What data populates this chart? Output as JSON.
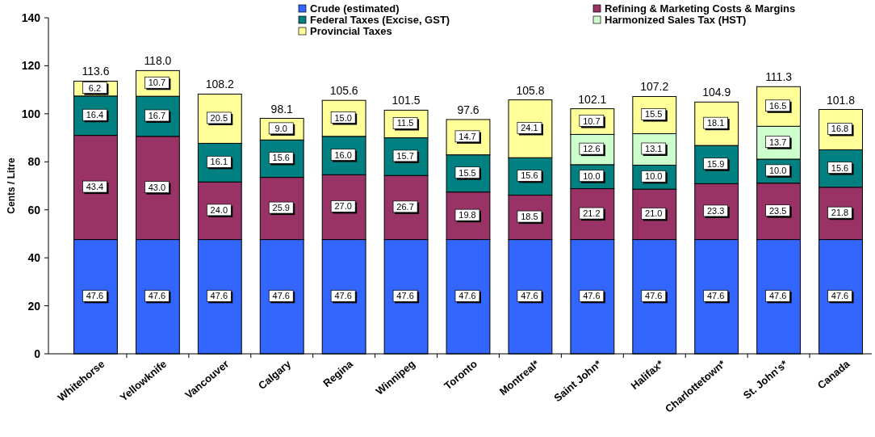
{
  "chart_data": {
    "type": "bar",
    "stacked": true,
    "ylabel": "Cents / Litre",
    "categories": [
      "Whitehorse",
      "Yellowknife",
      "Vancouver",
      "Calgary",
      "Regina",
      "Winnipeg",
      "Toronto",
      "Montreal*",
      "Saint John*",
      "Halifax*",
      "Charlottetown*",
      "St. John's*",
      "Canada"
    ],
    "series": [
      {
        "name": "Crude (estimated)",
        "color": "#3366ff",
        "values": [
          47.6,
          47.6,
          47.6,
          47.6,
          47.6,
          47.6,
          47.6,
          47.6,
          47.6,
          47.6,
          47.6,
          47.6,
          47.6
        ],
        "value_labels": [
          "47.6",
          "47.6",
          "47.6",
          "47.6",
          "47.6",
          "47.6",
          "47.6",
          "47.6",
          "47.6",
          "47.6",
          "47.6",
          "47.6",
          "47.6"
        ]
      },
      {
        "name": "Refining & Marketing Costs & Margins",
        "color": "#993366",
        "values": [
          43.4,
          43.0,
          24.0,
          25.9,
          27.0,
          26.7,
          19.8,
          18.5,
          21.2,
          21.0,
          23.3,
          23.5,
          21.8
        ],
        "value_labels": [
          "43.4",
          "43.0",
          "24.0",
          "25.9",
          "27.0",
          "26.7",
          "19.8",
          "18.5",
          "21.2",
          "21.0",
          "23.3",
          "23.5",
          "21.8"
        ]
      },
      {
        "name": "Federal Taxes (Excise, GST)",
        "color": "#008080",
        "values": [
          16.4,
          16.7,
          16.1,
          15.6,
          16.0,
          15.7,
          15.5,
          15.6,
          10.0,
          10.0,
          15.9,
          10.0,
          15.6
        ],
        "value_labels": [
          "16.4",
          "16.7",
          "16.1",
          "15.6",
          "16.0",
          "15.7",
          "15.5",
          "15.6",
          "10.0",
          "10.0",
          "15.9",
          "10.0",
          "15.6"
        ]
      },
      {
        "name": "Harmonized Sales Tax (HST)",
        "color": "#ccffcc",
        "values": [
          null,
          null,
          null,
          null,
          null,
          null,
          null,
          null,
          12.6,
          13.1,
          null,
          13.7,
          null
        ],
        "value_labels": [
          null,
          null,
          null,
          null,
          null,
          null,
          null,
          null,
          "12.6",
          "13.1",
          null,
          "13.7",
          null
        ]
      },
      {
        "name": "Provincial Taxes",
        "color": "#ffff99",
        "values": [
          6.2,
          10.7,
          20.5,
          9.0,
          15.0,
          11.5,
          14.7,
          24.1,
          10.7,
          15.5,
          18.1,
          16.5,
          16.8
        ],
        "value_labels": [
          "6.2",
          "10.7",
          "20.5",
          "9.0",
          "15.0",
          "11.5",
          "14.7",
          "24.1",
          "10.7",
          "15.5",
          "18.1",
          "16.5",
          "16.8"
        ]
      }
    ],
    "totals": [
      "113.6",
      "118.0",
      "108.2",
      "98.1",
      "105.6",
      "101.5",
      "97.6",
      "105.8",
      "102.1",
      "107.2",
      "104.9",
      "111.3",
      "101.8"
    ],
    "ylim": [
      0,
      140
    ],
    "yticks": [
      0,
      20,
      40,
      60,
      80,
      100,
      120,
      140
    ],
    "grid": false,
    "legend": "top right"
  }
}
